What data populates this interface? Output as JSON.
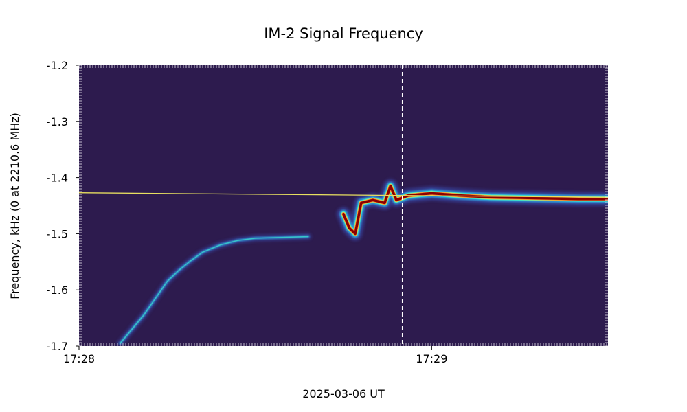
{
  "chart_data": {
    "type": "heatmap",
    "title": "IM-2 Signal Frequency",
    "xlabel": "2025-03-06 UT",
    "ylabel": "Frequency, kHz (0 at 2210.6 MHz)",
    "x_range": [
      "17:28:00",
      "17:29:30"
    ],
    "ylim": [
      -1.7,
      -1.2
    ],
    "y_ticks": [
      -1.2,
      -1.3,
      -1.4,
      -1.5,
      -1.6,
      -1.7
    ],
    "y_tick_labels": [
      "-1.2",
      "-1.3",
      "-1.4",
      "-1.5",
      "-1.6",
      "-1.7"
    ],
    "x_ticks": [
      "17:28:00",
      "17:29:00"
    ],
    "x_tick_labels": [
      "17:28",
      "17:29"
    ],
    "background_color": "#2d1b4e",
    "colormap": [
      "#2d1b4e",
      "#3a4fb8",
      "#2fa3e0",
      "#3de0c8",
      "#e8e04a",
      "#f08030",
      "#8b0000"
    ],
    "fit_line": {
      "color": "#e8e060",
      "points": [
        [
          "17:28:00",
          -1.427
        ],
        [
          "17:29:30",
          -1.435
        ]
      ]
    },
    "marker_line": {
      "style": "dashed",
      "color": "#ffffff",
      "x": "17:28:55"
    },
    "series": [
      {
        "intensity": "faint",
        "points": [
          [
            "17:28:07",
            -1.695
          ],
          [
            "17:28:09",
            -1.67
          ],
          [
            "17:28:11",
            -1.645
          ],
          [
            "17:28:13",
            -1.615
          ],
          [
            "17:28:15",
            -1.585
          ],
          [
            "17:28:17",
            -1.565
          ],
          [
            "17:28:19",
            -1.548
          ],
          [
            "17:28:21",
            -1.533
          ],
          [
            "17:28:24",
            -1.52
          ],
          [
            "17:28:27",
            -1.512
          ],
          [
            "17:28:30",
            -1.508
          ],
          [
            "17:28:33",
            -1.507
          ],
          [
            "17:28:36",
            -1.506
          ],
          [
            "17:28:39",
            -1.505
          ]
        ]
      },
      {
        "intensity": "strong",
        "points": [
          [
            "17:28:45",
            -1.465
          ],
          [
            "17:28:46",
            -1.49
          ],
          [
            "17:28:47",
            -1.5
          ],
          [
            "17:28:48",
            -1.445
          ],
          [
            "17:28:50",
            -1.44
          ],
          [
            "17:28:52",
            -1.445
          ],
          [
            "17:28:53",
            -1.415
          ],
          [
            "17:28:54",
            -1.44
          ],
          [
            "17:28:56",
            -1.432
          ],
          [
            "17:29:00",
            -1.428
          ],
          [
            "17:29:05",
            -1.432
          ],
          [
            "17:29:10",
            -1.435
          ],
          [
            "17:29:15",
            -1.436
          ],
          [
            "17:29:20",
            -1.437
          ],
          [
            "17:29:25",
            -1.438
          ],
          [
            "17:29:30",
            -1.438
          ]
        ]
      }
    ]
  }
}
